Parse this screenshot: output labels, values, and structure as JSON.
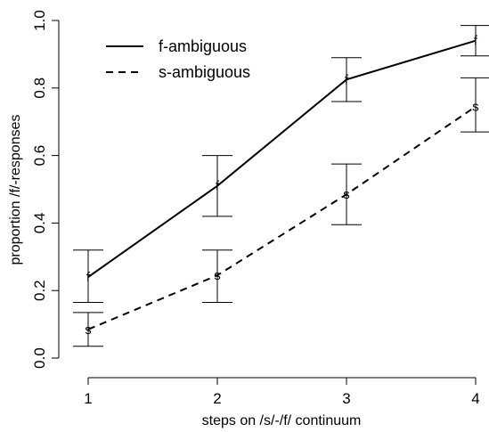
{
  "chart_data": {
    "type": "line",
    "x": [
      1,
      2,
      3,
      4
    ],
    "xlabel": "steps on /s/-/f/ continuum",
    "ylabel": "proportion /f/-responses",
    "xlim": [
      1,
      4
    ],
    "ylim": [
      0,
      1
    ],
    "xticks": [
      "1",
      "2",
      "3",
      "4"
    ],
    "yticks": [
      "0.0",
      "0.2",
      "0.4",
      "0.6",
      "0.8",
      "1.0"
    ],
    "grid": false,
    "legend_position": "top-left",
    "series": [
      {
        "name": "f-ambiguous",
        "marker": "f",
        "line_style": "solid",
        "color": "#000000",
        "values": [
          0.24,
          0.51,
          0.825,
          0.94
        ],
        "error_low": [
          0.165,
          0.42,
          0.76,
          0.895
        ],
        "error_high": [
          0.32,
          0.6,
          0.89,
          0.985
        ]
      },
      {
        "name": "s-ambiguous",
        "marker": "s",
        "line_style": "dashed",
        "color": "#000000",
        "values": [
          0.085,
          0.245,
          0.485,
          0.745
        ],
        "error_low": [
          0.035,
          0.165,
          0.395,
          0.67
        ],
        "error_high": [
          0.135,
          0.32,
          0.575,
          0.83
        ]
      }
    ]
  }
}
